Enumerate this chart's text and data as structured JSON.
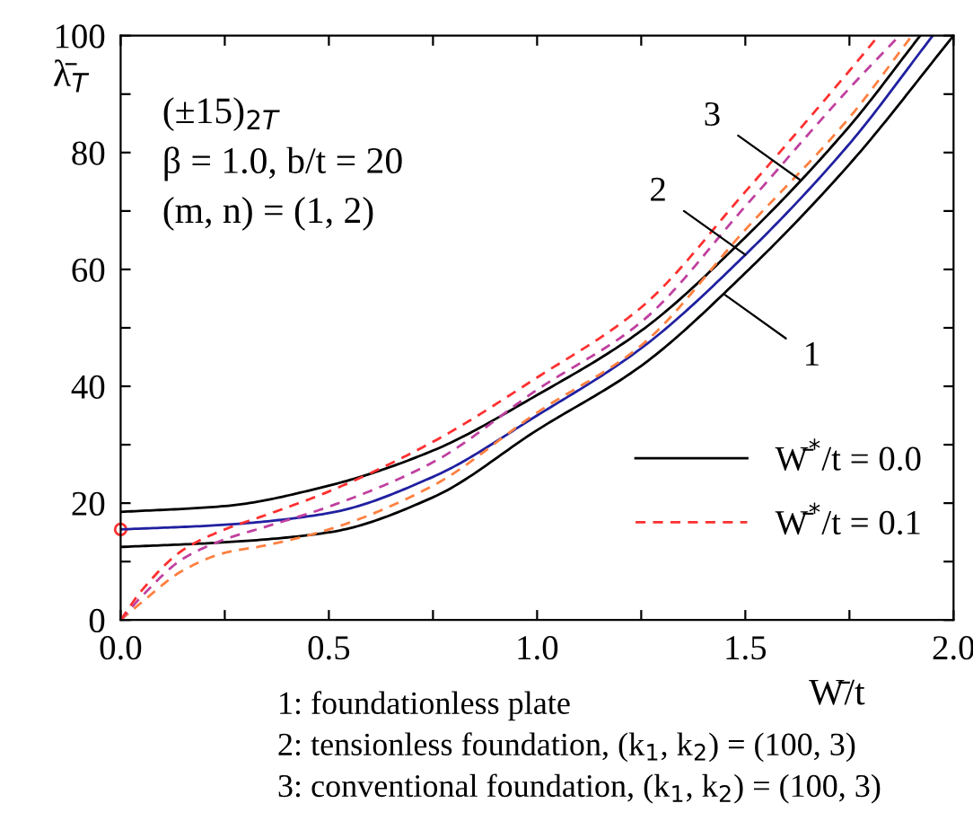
{
  "chart_data": {
    "type": "line",
    "xlabel": "W̄/t",
    "ylabel": "λ̄$_{T}$",
    "xlim": [
      0,
      2.0
    ],
    "ylim": [
      0,
      100
    ],
    "xticks": [
      {
        "value": 0.0,
        "label": "0.0"
      },
      {
        "value": 0.25,
        "label": null
      },
      {
        "value": 0.5,
        "label": "0.5"
      },
      {
        "value": 0.75,
        "label": null
      },
      {
        "value": 1.0,
        "label": "1.0"
      },
      {
        "value": 1.25,
        "label": null
      },
      {
        "value": 1.5,
        "label": "1.5"
      },
      {
        "value": 1.75,
        "label": null
      },
      {
        "value": 2.0,
        "label": "2.0"
      }
    ],
    "yticks": [
      0,
      {
        "value": 10,
        "label": null
      },
      20,
      {
        "value": 30,
        "label": null
      },
      40,
      {
        "value": 50,
        "label": null
      },
      60,
      {
        "value": 70,
        "label": null
      },
      80,
      {
        "value": 90,
        "label": null
      },
      100
    ],
    "grid": false,
    "legend": "lower right",
    "series": [
      {
        "name": "W̄$^{*}$/t = 0.0",
        "color": "#000000",
        "line_style": "solid",
        "x": [
          0,
          0.25,
          0.5,
          0.75,
          1.0,
          1.25,
          1.5,
          1.75,
          2.0
        ],
        "values": [
          12.5,
          13.3,
          15,
          21,
          32.5,
          43.5,
          59.4,
          78,
          100
        ]
      },
      {
        "color": "#2020a0",
        "line_style": "solid",
        "x": [
          0,
          0.25,
          0.5,
          0.75,
          1.0,
          1.25,
          1.5,
          1.75,
          1.95
        ],
        "values": [
          15.5,
          16.3,
          18.3,
          24.5,
          35,
          46.5,
          62.5,
          81.5,
          100
        ]
      },
      {
        "color": "#000000",
        "line_style": "solid",
        "x": [
          0,
          0.25,
          0.5,
          0.75,
          1.0,
          1.25,
          1.5,
          1.75,
          1.92
        ],
        "values": [
          18.5,
          19.5,
          23,
          29,
          38.5,
          49.5,
          65.5,
          84.5,
          100
        ]
      },
      {
        "color": "#ff8040",
        "line_style": "dashed",
        "x": [
          0,
          0.05,
          0.15,
          0.25,
          0.35,
          0.5,
          0.75,
          1.0,
          1.25,
          1.5,
          1.75,
          1.9
        ],
        "values": [
          0,
          3,
          8.5,
          11.5,
          12.8,
          15.5,
          23,
          35.5,
          47,
          66.8,
          86,
          100
        ]
      },
      {
        "color": "#c040a0",
        "line_style": "dashed",
        "x": [
          0,
          0.05,
          0.15,
          0.25,
          0.35,
          0.5,
          0.75,
          1.0,
          1.25,
          1.5,
          1.75,
          1.87
        ],
        "values": [
          0,
          4,
          10.5,
          13.8,
          16,
          19.4,
          27,
          39.4,
          51,
          70.8,
          91,
          100
        ]
      },
      {
        "name": "W̄$^{*}$/t = 0.1",
        "color": "#ff3030",
        "line_style": "dashed",
        "x": [
          0,
          0.05,
          0.15,
          0.25,
          0.35,
          0.5,
          0.75,
          1.0,
          1.25,
          1.5,
          1.75,
          1.82
        ],
        "values": [
          0,
          5,
          12,
          15.5,
          18,
          22,
          30.5,
          41.5,
          53.5,
          73.3,
          94,
          100
        ]
      },
      {
        "type": "scatter",
        "marker": "circle",
        "color": "#ff3030",
        "x": [
          0
        ],
        "values": [
          15.5
        ]
      }
    ],
    "annotations": [
      "(±15)$_{2T}$",
      "β = 1.0, b/t = 20",
      "(m, n) = (1, 2)",
      {
        "text": "1",
        "x": 1.45,
        "y": 55.7
      },
      {
        "text": "2",
        "x": 1.5,
        "y": 62.5
      },
      {
        "text": "3",
        "x": 1.63,
        "y": 75.4
      },
      "1: foundationless plate",
      "2: tensionless foundation, (k$_{1}$, k$_{2}$) = (100, 3)",
      "3: conventional foundation, (k$_{1}$, k$_{2}$) = (100, 3)"
    ]
  }
}
